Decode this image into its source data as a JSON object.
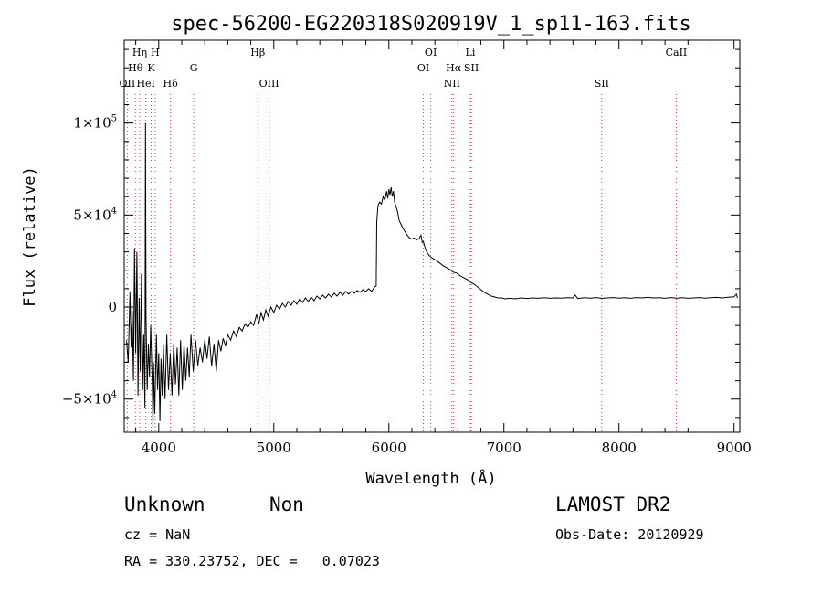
{
  "chart_data": {
    "type": "line",
    "title": "spec-56200-EG220318S020919V_1_sp11-163.fits",
    "xlabel": "Wavelength (Å)",
    "ylabel": "Flux (relative)",
    "xlim": [
      3700,
      9050
    ],
    "ylim": [
      -68000,
      145000
    ],
    "x_ticks": [
      {
        "value": 4000,
        "label": "4000"
      },
      {
        "value": 5000,
        "label": "5000"
      },
      {
        "value": 6000,
        "label": "6000"
      },
      {
        "value": 7000,
        "label": "7000"
      },
      {
        "value": 8000,
        "label": "8000"
      },
      {
        "value": 9000,
        "label": "9000"
      }
    ],
    "y_ticks": [
      {
        "value": -50000,
        "mantissa": "−5×10",
        "exp": "4"
      },
      {
        "value": 0,
        "mantissa": "0",
        "exp": ""
      },
      {
        "value": 50000,
        "mantissa": "5×10",
        "exp": "4"
      },
      {
        "value": 100000,
        "mantissa": "1×10",
        "exp": "5"
      }
    ],
    "spectrum": [
      [
        3720,
        -18000
      ],
      [
        3735,
        -30000
      ],
      [
        3750,
        8000
      ],
      [
        3760,
        -22000
      ],
      [
        3770,
        -2000
      ],
      [
        3780,
        -40000
      ],
      [
        3790,
        32000
      ],
      [
        3800,
        -25000
      ],
      [
        3810,
        30000
      ],
      [
        3820,
        -48000
      ],
      [
        3830,
        5000
      ],
      [
        3840,
        -35000
      ],
      [
        3850,
        18000
      ],
      [
        3860,
        -45000
      ],
      [
        3870,
        -15000
      ],
      [
        3880,
        -55000
      ],
      [
        3885,
        100000
      ],
      [
        3890,
        -5000
      ],
      [
        3900,
        -45000
      ],
      [
        3910,
        -20000
      ],
      [
        3920,
        -38000
      ],
      [
        3930,
        -10000
      ],
      [
        3945,
        -45000
      ],
      [
        3950,
        -68000
      ],
      [
        3955,
        -30000
      ],
      [
        3965,
        -58000
      ],
      [
        3980,
        -15000
      ],
      [
        3990,
        -45000
      ],
      [
        4000,
        -25000
      ],
      [
        4010,
        -62000
      ],
      [
        4020,
        -28000
      ],
      [
        4030,
        -48000
      ],
      [
        4040,
        -20000
      ],
      [
        4055,
        -50000
      ],
      [
        4070,
        -15000
      ],
      [
        4085,
        -45000
      ],
      [
        4100,
        -25000
      ],
      [
        4115,
        -48000
      ],
      [
        4130,
        -20000
      ],
      [
        4145,
        -42000
      ],
      [
        4160,
        -22000
      ],
      [
        4175,
        -48000
      ],
      [
        4190,
        -18000
      ],
      [
        4205,
        -45000
      ],
      [
        4220,
        -20000
      ],
      [
        4235,
        -40000
      ],
      [
        4250,
        -22000
      ],
      [
        4265,
        -38000
      ],
      [
        4280,
        -15000
      ],
      [
        4300,
        -35000
      ],
      [
        4320,
        -18000
      ],
      [
        4340,
        -32000
      ],
      [
        4360,
        -22000
      ],
      [
        4380,
        -30000
      ],
      [
        4400,
        -18000
      ],
      [
        4420,
        -28000
      ],
      [
        4440,
        -16000
      ],
      [
        4460,
        -32000
      ],
      [
        4480,
        -20000
      ],
      [
        4500,
        -35000
      ],
      [
        4520,
        -18000
      ],
      [
        4540,
        -24000
      ],
      [
        4560,
        -17000
      ],
      [
        4580,
        -21000
      ],
      [
        4600,
        -15000
      ],
      [
        4625,
        -18000
      ],
      [
        4650,
        -13000
      ],
      [
        4675,
        -16000
      ],
      [
        4700,
        -11000
      ],
      [
        4725,
        -13000
      ],
      [
        4750,
        -9000
      ],
      [
        4775,
        -11000
      ],
      [
        4800,
        -8000
      ],
      [
        4825,
        -10000
      ],
      [
        4850,
        -4000
      ],
      [
        4870,
        -9000
      ],
      [
        4890,
        -3000
      ],
      [
        4910,
        -7000
      ],
      [
        4930,
        -1500
      ],
      [
        4950,
        -5000
      ],
      [
        4975,
        0
      ],
      [
        5000,
        -3000
      ],
      [
        5025,
        1000
      ],
      [
        5050,
        -1000
      ],
      [
        5075,
        2000
      ],
      [
        5100,
        0
      ],
      [
        5125,
        3000
      ],
      [
        5150,
        1000
      ],
      [
        5175,
        3500
      ],
      [
        5200,
        1500
      ],
      [
        5225,
        4500
      ],
      [
        5250,
        2500
      ],
      [
        5275,
        5000
      ],
      [
        5300,
        3000
      ],
      [
        5325,
        5500
      ],
      [
        5350,
        3500
      ],
      [
        5375,
        6000
      ],
      [
        5400,
        4500
      ],
      [
        5425,
        6500
      ],
      [
        5450,
        5000
      ],
      [
        5475,
        7000
      ],
      [
        5500,
        5500
      ],
      [
        5525,
        7500
      ],
      [
        5550,
        6000
      ],
      [
        5575,
        8000
      ],
      [
        5600,
        6500
      ],
      [
        5625,
        8500
      ],
      [
        5650,
        7000
      ],
      [
        5675,
        8500
      ],
      [
        5700,
        7500
      ],
      [
        5725,
        9000
      ],
      [
        5750,
        8000
      ],
      [
        5775,
        9500
      ],
      [
        5800,
        8500
      ],
      [
        5825,
        10000
      ],
      [
        5850,
        8500
      ],
      [
        5870,
        10500
      ],
      [
        5890,
        11500
      ],
      [
        5895,
        46000
      ],
      [
        5905,
        55000
      ],
      [
        5920,
        57000
      ],
      [
        5935,
        56000
      ],
      [
        5950,
        60000
      ],
      [
        5965,
        58000
      ],
      [
        5980,
        63000
      ],
      [
        5990,
        59000
      ],
      [
        6000,
        64000
      ],
      [
        6010,
        61000
      ],
      [
        6020,
        65000
      ],
      [
        6030,
        60000
      ],
      [
        6040,
        63000
      ],
      [
        6050,
        57000
      ],
      [
        6060,
        55000
      ],
      [
        6075,
        52000
      ],
      [
        6090,
        47000
      ],
      [
        6105,
        45000
      ],
      [
        6120,
        43000
      ],
      [
        6140,
        41000
      ],
      [
        6160,
        39000
      ],
      [
        6180,
        37500
      ],
      [
        6200,
        37000
      ],
      [
        6220,
        37500
      ],
      [
        6240,
        36500
      ],
      [
        6260,
        37000
      ],
      [
        6280,
        39000
      ],
      [
        6290,
        35000
      ],
      [
        6300,
        35500
      ],
      [
        6320,
        31000
      ],
      [
        6350,
        28000
      ],
      [
        6380,
        26500
      ],
      [
        6410,
        25500
      ],
      [
        6440,
        24000
      ],
      [
        6470,
        22500
      ],
      [
        6500,
        21500
      ],
      [
        6530,
        20500
      ],
      [
        6560,
        19000
      ],
      [
        6590,
        18500
      ],
      [
        6620,
        17000
      ],
      [
        6650,
        16000
      ],
      [
        6680,
        15000
      ],
      [
        6710,
        13500
      ],
      [
        6740,
        12500
      ],
      [
        6770,
        11000
      ],
      [
        6800,
        9500
      ],
      [
        6830,
        8000
      ],
      [
        6860,
        7000
      ],
      [
        6890,
        6000
      ],
      [
        6920,
        5500
      ],
      [
        6950,
        5000
      ],
      [
        6980,
        5000
      ],
      [
        7010,
        4500
      ],
      [
        7050,
        4800
      ],
      [
        7100,
        4500
      ],
      [
        7150,
        5000
      ],
      [
        7200,
        4700
      ],
      [
        7250,
        5000
      ],
      [
        7300,
        4800
      ],
      [
        7350,
        5100
      ],
      [
        7400,
        4800
      ],
      [
        7450,
        5000
      ],
      [
        7500,
        4900
      ],
      [
        7550,
        5100
      ],
      [
        7600,
        5000
      ],
      [
        7620,
        6500
      ],
      [
        7640,
        4700
      ],
      [
        7700,
        5100
      ],
      [
        7750,
        4900
      ],
      [
        7800,
        5200
      ],
      [
        7850,
        4800
      ],
      [
        7900,
        5000
      ],
      [
        7950,
        5200
      ],
      [
        8000,
        4900
      ],
      [
        8050,
        5100
      ],
      [
        8100,
        4800
      ],
      [
        8150,
        5200
      ],
      [
        8200,
        5000
      ],
      [
        8250,
        5300
      ],
      [
        8300,
        5000
      ],
      [
        8350,
        5100
      ],
      [
        8400,
        4800
      ],
      [
        8450,
        5200
      ],
      [
        8500,
        4900
      ],
      [
        8550,
        5100
      ],
      [
        8600,
        4800
      ],
      [
        8650,
        5000
      ],
      [
        8700,
        5200
      ],
      [
        8750,
        4900
      ],
      [
        8800,
        5100
      ],
      [
        8850,
        5300
      ],
      [
        8900,
        5000
      ],
      [
        8950,
        5400
      ],
      [
        9000,
        5600
      ],
      [
        9020,
        7000
      ],
      [
        9030,
        5000
      ]
    ],
    "lines": [
      {
        "label": "OII",
        "x": 3727,
        "row": 3
      },
      {
        "label": "Hθ",
        "x": 3797,
        "row": 2
      },
      {
        "label": "Hη",
        "x": 3835,
        "row": 1
      },
      {
        "label": "HeI",
        "x": 3888,
        "row": 3
      },
      {
        "label": "K",
        "x": 3934,
        "row": 2
      },
      {
        "label": "H",
        "x": 3969,
        "row": 1
      },
      {
        "label": "Hδ",
        "x": 4102,
        "row": 3
      },
      {
        "label": "G",
        "x": 4304,
        "row": 2
      },
      {
        "label": "Hβ",
        "x": 4861,
        "row": 1
      },
      {
        "label": "OIII",
        "x": 4959,
        "row": 3
      },
      {
        "label": "OI",
        "x": 6300,
        "row": 2
      },
      {
        "label": "OI",
        "x": 6364,
        "row": 1
      },
      {
        "label": "NII",
        "x": 6548,
        "row": 3
      },
      {
        "label": "Hα",
        "x": 6563,
        "row": 2
      },
      {
        "label": "SII",
        "x": 6717,
        "row": 2
      },
      {
        "label": "Li",
        "x": 6708,
        "row": 1
      },
      {
        "label": "SII",
        "x": 7850,
        "row": 3
      },
      {
        "label": "CaII",
        "x": 8498,
        "row": 1
      }
    ]
  },
  "info": {
    "class": "Unknown",
    "subclass": "Non",
    "survey": "LAMOST DR2",
    "cz": "cz = NaN",
    "obs_date": "Obs-Date: 20120929",
    "coords": "RA = 330.23752, DEC =   0.07023"
  }
}
